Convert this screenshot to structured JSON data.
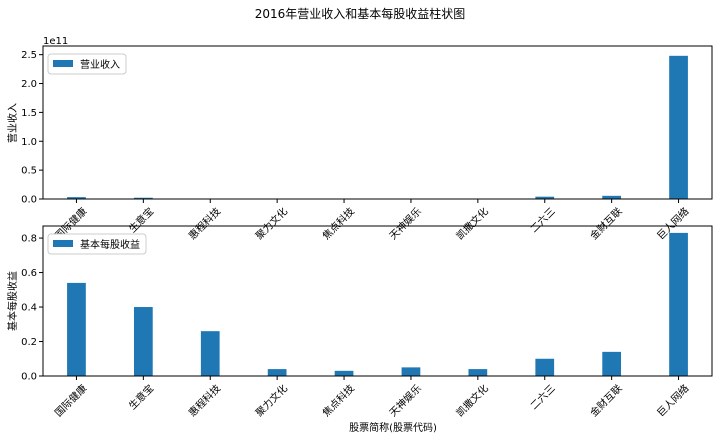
{
  "figure": {
    "title": "2016年营业收入和基本每股收益柱状图",
    "xlabel": "股票简称(股票代码)"
  },
  "colors": {
    "bar": "#1f77b4",
    "axis": "#000000",
    "background": "#ffffff"
  },
  "chart_data": [
    {
      "type": "bar",
      "title": "",
      "xlabel": "",
      "ylabel": "营业收入",
      "offset_text": "1e11",
      "categories": [
        "国际健康",
        "生意宝",
        "惠程科技",
        "聚力文化",
        "焦点科技",
        "天神娱乐",
        "凯撒文化",
        "二六三",
        "金财互联",
        "巨人网络"
      ],
      "series": [
        {
          "name": "营业收入",
          "values": [
            3200000000.0,
            2200000000.0,
            500000000.0,
            400000000.0,
            400000000.0,
            600000000.0,
            300000000.0,
            4000000000.0,
            5500000000.0,
            248000000000.0
          ]
        }
      ],
      "ylim": [
        0,
        265000000000.0
      ],
      "yticks": [
        {
          "value": 0,
          "label": "0.0"
        },
        {
          "value": 50000000000.0,
          "label": "0.5"
        },
        {
          "value": 100000000000.0,
          "label": "1.0"
        },
        {
          "value": 150000000000.0,
          "label": "1.5"
        },
        {
          "value": 200000000000.0,
          "label": "2.0"
        },
        {
          "value": 250000000000.0,
          "label": "2.5"
        }
      ],
      "grid": false,
      "legend": "upper-left"
    },
    {
      "type": "bar",
      "title": "",
      "xlabel": "股票简称(股票代码)",
      "ylabel": "基本每股收益",
      "categories": [
        "国际健康",
        "生意宝",
        "惠程科技",
        "聚力文化",
        "焦点科技",
        "天神娱乐",
        "凯撒文化",
        "二六三",
        "金财互联",
        "巨人网络"
      ],
      "series": [
        {
          "name": "基本每股收益",
          "values": [
            0.54,
            0.4,
            0.26,
            0.04,
            0.03,
            0.05,
            0.04,
            0.1,
            0.14,
            0.83
          ]
        }
      ],
      "ylim": [
        0,
        0.87
      ],
      "yticks": [
        {
          "value": 0,
          "label": "0.0"
        },
        {
          "value": 0.2,
          "label": "0.2"
        },
        {
          "value": 0.4,
          "label": "0.4"
        },
        {
          "value": 0.6,
          "label": "0.6"
        },
        {
          "value": 0.8,
          "label": "0.8"
        }
      ],
      "grid": false,
      "legend": "upper-left"
    }
  ]
}
